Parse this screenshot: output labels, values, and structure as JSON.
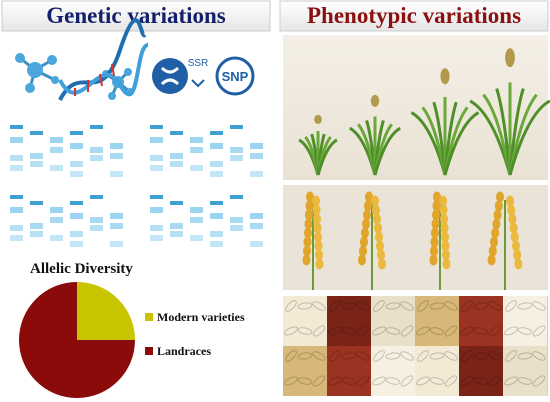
{
  "left_panel": {
    "title": "Genetic variations",
    "markers": [
      "SSR",
      "SNP"
    ]
  },
  "right_panel": {
    "title": "Phenotypic variations"
  },
  "pie": {
    "type": "pie",
    "title": "Allelic Diversity",
    "series": [
      {
        "name": "Modern varieties",
        "color": "#c9c400",
        "value": 25
      },
      {
        "name": "Landraces",
        "color": "#8b0a0a",
        "value": 75
      }
    ]
  }
}
